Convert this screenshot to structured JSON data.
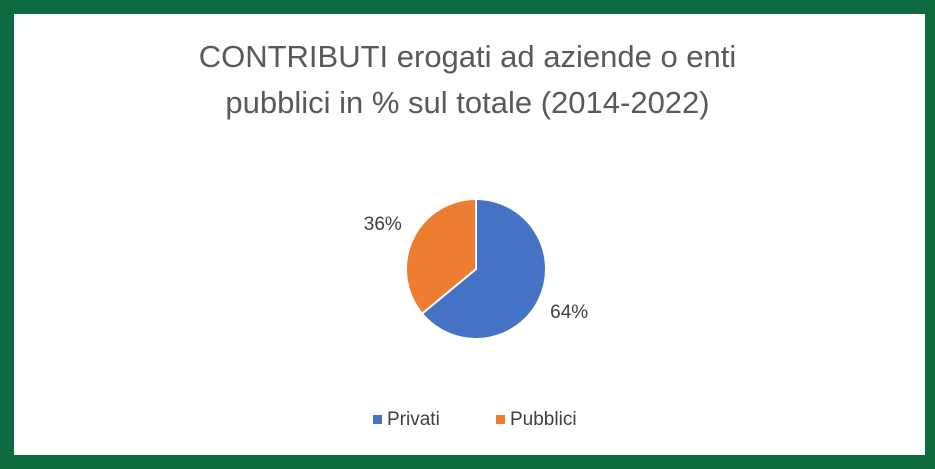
{
  "chart_data": {
    "type": "pie",
    "title": "CONTRIBUTI erogati ad aziende o enti\npubblici in % sul totale (2014-2022)",
    "categories": [
      "Privati",
      "Pubblici"
    ],
    "values": [
      64,
      36
    ],
    "value_labels": [
      "64%",
      "36%"
    ],
    "colors": [
      "#4472c4",
      "#ed7d31"
    ],
    "legend": "bottom"
  }
}
